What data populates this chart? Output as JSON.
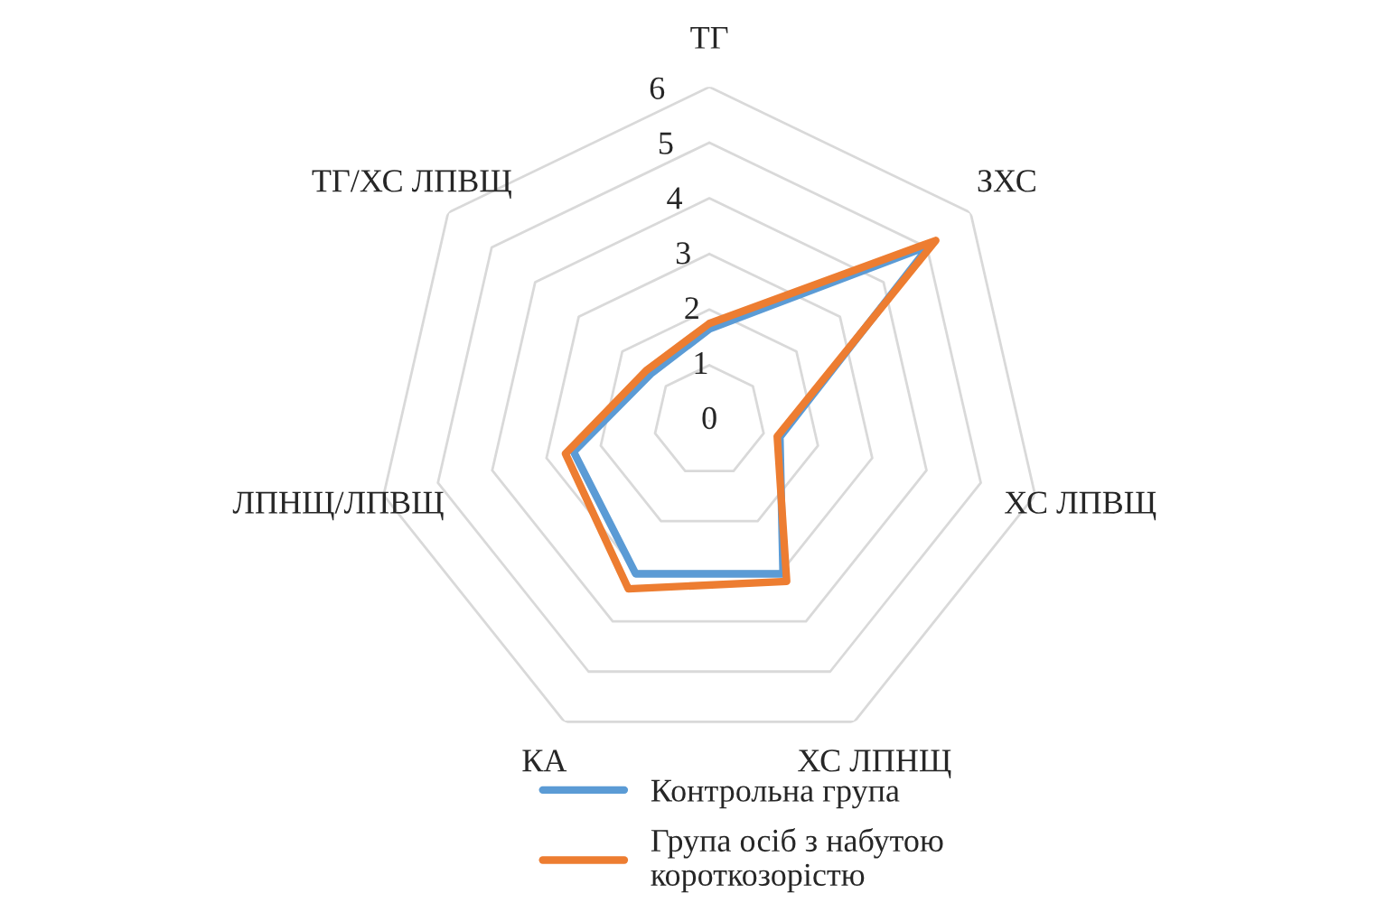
{
  "chart_data": {
    "type": "radar",
    "categories": [
      "ТГ",
      "ЗХС",
      "ХС ЛПВЩ",
      "ХС ЛПНЩ",
      "КА",
      "ЛПНЩ/ЛПВЩ",
      "ТГ/ХС ЛПВЩ"
    ],
    "series": [
      {
        "name": "Контрольна група",
        "color": "#5b9bd5",
        "values": [
          1.65,
          5.05,
          1.3,
          3.05,
          3.05,
          2.5,
          1.35
        ]
      },
      {
        "name": "Група осіб з набутою\nкороткозорістю",
        "color": "#ed7d31",
        "values": [
          1.75,
          5.2,
          1.25,
          3.2,
          3.35,
          2.65,
          1.45
        ]
      }
    ],
    "ylim": [
      0,
      6
    ],
    "yticks": [
      0,
      1,
      2,
      3,
      4,
      5,
      6
    ],
    "grid": true,
    "legend": "bottom",
    "marker": "none",
    "line_style": "solid"
  }
}
